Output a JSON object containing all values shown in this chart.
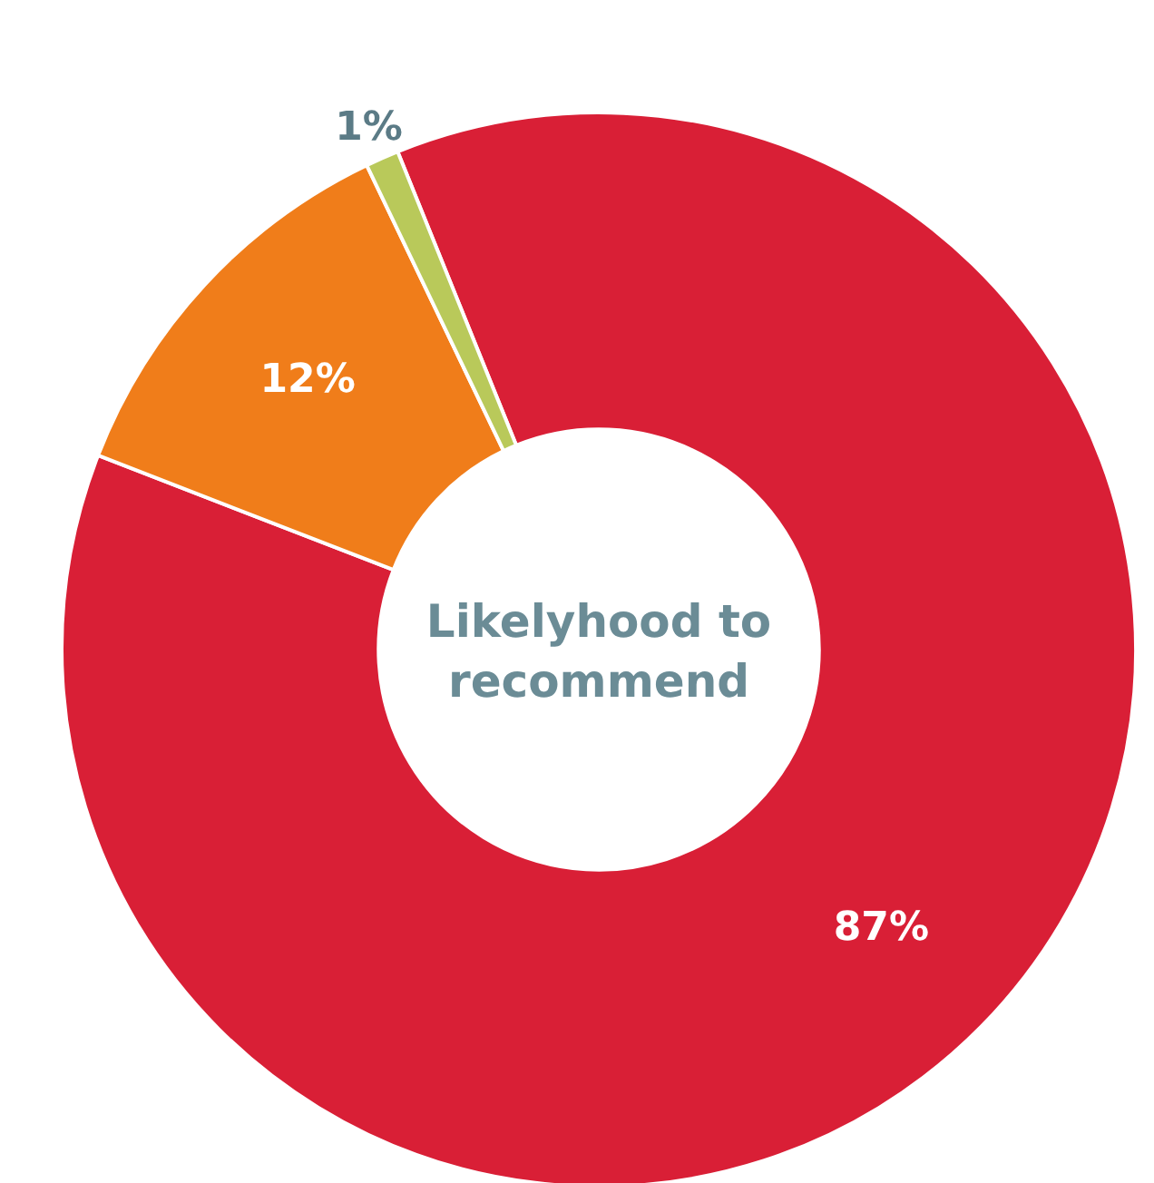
{
  "chart_data": {
    "type": "donut",
    "title": "Likelyhood to recommend",
    "categories": [
      null,
      null,
      null
    ],
    "values": [
      87,
      12,
      1
    ],
    "colors": [
      "#d91f36",
      "#f07d1a",
      "#b9c95a"
    ],
    "value_labels": [
      "87%",
      "12%",
      "1%"
    ]
  }
}
